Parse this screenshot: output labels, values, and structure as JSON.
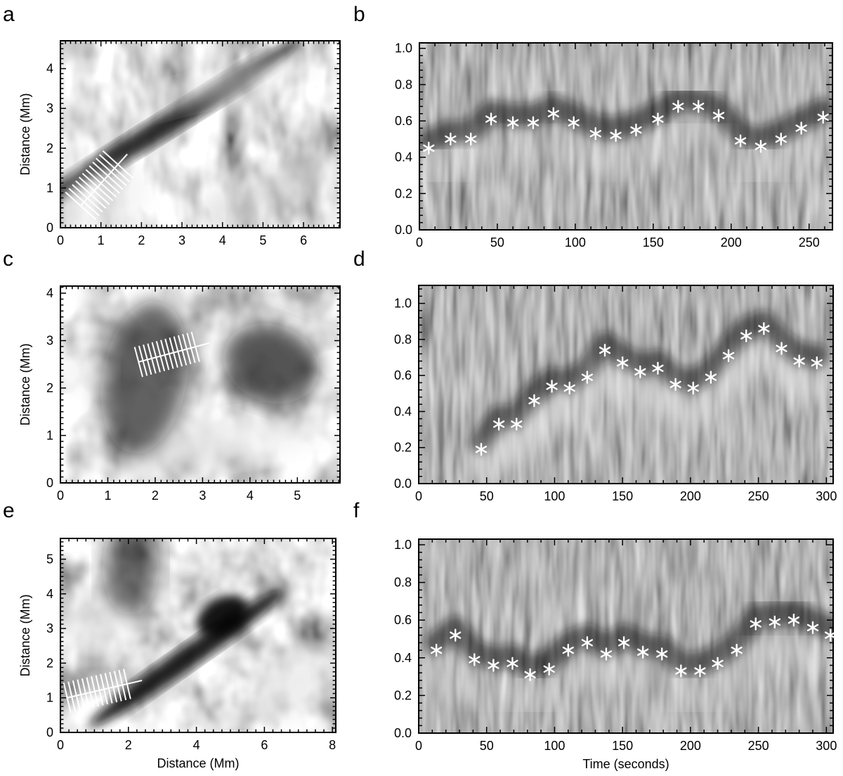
{
  "figure": {
    "panels": [
      {
        "letter": "a",
        "type": "image",
        "xlabel": "",
        "ylabel": "Distance (Mm)",
        "xlim": [
          0,
          6.9
        ],
        "ylim": [
          0,
          4.7
        ],
        "xticks": [
          "0",
          "1",
          "2",
          "3",
          "4",
          "5",
          "6"
        ],
        "yticks": [
          "0",
          "1",
          "2",
          "3",
          "4"
        ],
        "slit": {
          "x0": 0.5,
          "y0": 0.55,
          "x1": 1.65,
          "y1": 1.85,
          "cuts": 12
        }
      },
      {
        "letter": "b",
        "type": "scatter",
        "xlabel": "",
        "ylabel": "",
        "xlim": [
          0,
          265
        ],
        "ylim": [
          0,
          1.03
        ],
        "xticks": [
          "0",
          "50",
          "100",
          "150",
          "200",
          "250"
        ],
        "yticks": [
          "0.0",
          "0.2",
          "0.4",
          "0.6",
          "0.8",
          "1.0"
        ]
      },
      {
        "letter": "c",
        "type": "image",
        "xlabel": "",
        "ylabel": "Distance (Mm)",
        "xlim": [
          0,
          5.9
        ],
        "ylim": [
          0,
          4.15
        ],
        "xticks": [
          "0",
          "1",
          "2",
          "3",
          "4",
          "5"
        ],
        "yticks": [
          "0",
          "1",
          "2",
          "3",
          "4"
        ],
        "slit": {
          "x0": 1.65,
          "y0": 2.55,
          "x1": 3.15,
          "y1": 2.95,
          "cuts": 14
        }
      },
      {
        "letter": "d",
        "type": "scatter",
        "xlabel": "",
        "ylabel": "",
        "xlim": [
          0,
          305
        ],
        "ylim": [
          0,
          1.1
        ],
        "xticks": [
          "0",
          "50",
          "100",
          "150",
          "200",
          "250",
          "300"
        ],
        "yticks": [
          "0.0",
          "0.2",
          "0.4",
          "0.6",
          "0.8",
          "1.0"
        ]
      },
      {
        "letter": "e",
        "type": "image",
        "xlabel": "Distance (Mm)",
        "ylabel": "Distance (Mm)",
        "xlim": [
          0,
          8.1
        ],
        "ylim": [
          0,
          5.6
        ],
        "xticks": [
          "0",
          "2",
          "4",
          "6",
          "8"
        ],
        "yticks": [
          "0",
          "1",
          "2",
          "3",
          "4",
          "5"
        ],
        "slit": {
          "x0": 0.2,
          "y0": 1.0,
          "x1": 2.4,
          "y1": 1.5,
          "cuts": 14
        }
      },
      {
        "letter": "f",
        "type": "scatter",
        "xlabel": "Time (seconds)",
        "ylabel": "",
        "xlim": [
          0,
          305
        ],
        "ylim": [
          0,
          1.03
        ],
        "xticks": [
          "0",
          "50",
          "100",
          "150",
          "200",
          "250",
          "300"
        ],
        "yticks": [
          "0.0",
          "0.2",
          "0.4",
          "0.6",
          "0.8",
          "1.0"
        ]
      }
    ]
  },
  "chart_data": [
    {
      "panel": "b",
      "type": "scatter",
      "marker": "asterisk",
      "x": [
        6,
        20,
        33,
        46,
        60,
        73,
        86,
        99,
        113,
        126,
        139,
        153,
        166,
        179,
        192,
        206,
        219,
        232,
        245,
        259
      ],
      "y": [
        0.45,
        0.5,
        0.5,
        0.61,
        0.59,
        0.59,
        0.64,
        0.59,
        0.53,
        0.52,
        0.55,
        0.61,
        0.68,
        0.68,
        0.63,
        0.49,
        0.46,
        0.5,
        0.56,
        0.62
      ],
      "xlim": [
        0,
        265
      ],
      "ylim": [
        0,
        1.03
      ]
    },
    {
      "panel": "d",
      "type": "scatter",
      "marker": "asterisk",
      "x": [
        46,
        59,
        72,
        85,
        98,
        111,
        124,
        137,
        150,
        163,
        176,
        189,
        202,
        215,
        228,
        241,
        254,
        267,
        280,
        293
      ],
      "y": [
        0.19,
        0.33,
        0.33,
        0.46,
        0.54,
        0.53,
        0.59,
        0.74,
        0.67,
        0.62,
        0.64,
        0.55,
        0.53,
        0.59,
        0.71,
        0.82,
        0.86,
        0.75,
        0.68,
        0.67
      ],
      "xlim": [
        0,
        305
      ],
      "ylim": [
        0,
        1.1
      ]
    },
    {
      "panel": "f",
      "type": "scatter",
      "marker": "asterisk",
      "x": [
        13,
        27,
        41,
        55,
        69,
        82,
        96,
        110,
        124,
        138,
        151,
        165,
        179,
        193,
        207,
        220,
        234,
        248,
        262,
        276,
        290,
        303
      ],
      "y": [
        0.44,
        0.52,
        0.39,
        0.36,
        0.37,
        0.31,
        0.34,
        0.44,
        0.48,
        0.42,
        0.48,
        0.43,
        0.42,
        0.33,
        0.33,
        0.37,
        0.44,
        0.58,
        0.59,
        0.6,
        0.56,
        0.52
      ],
      "xlim": [
        0,
        305
      ],
      "ylim": [
        0,
        1.03
      ]
    }
  ]
}
